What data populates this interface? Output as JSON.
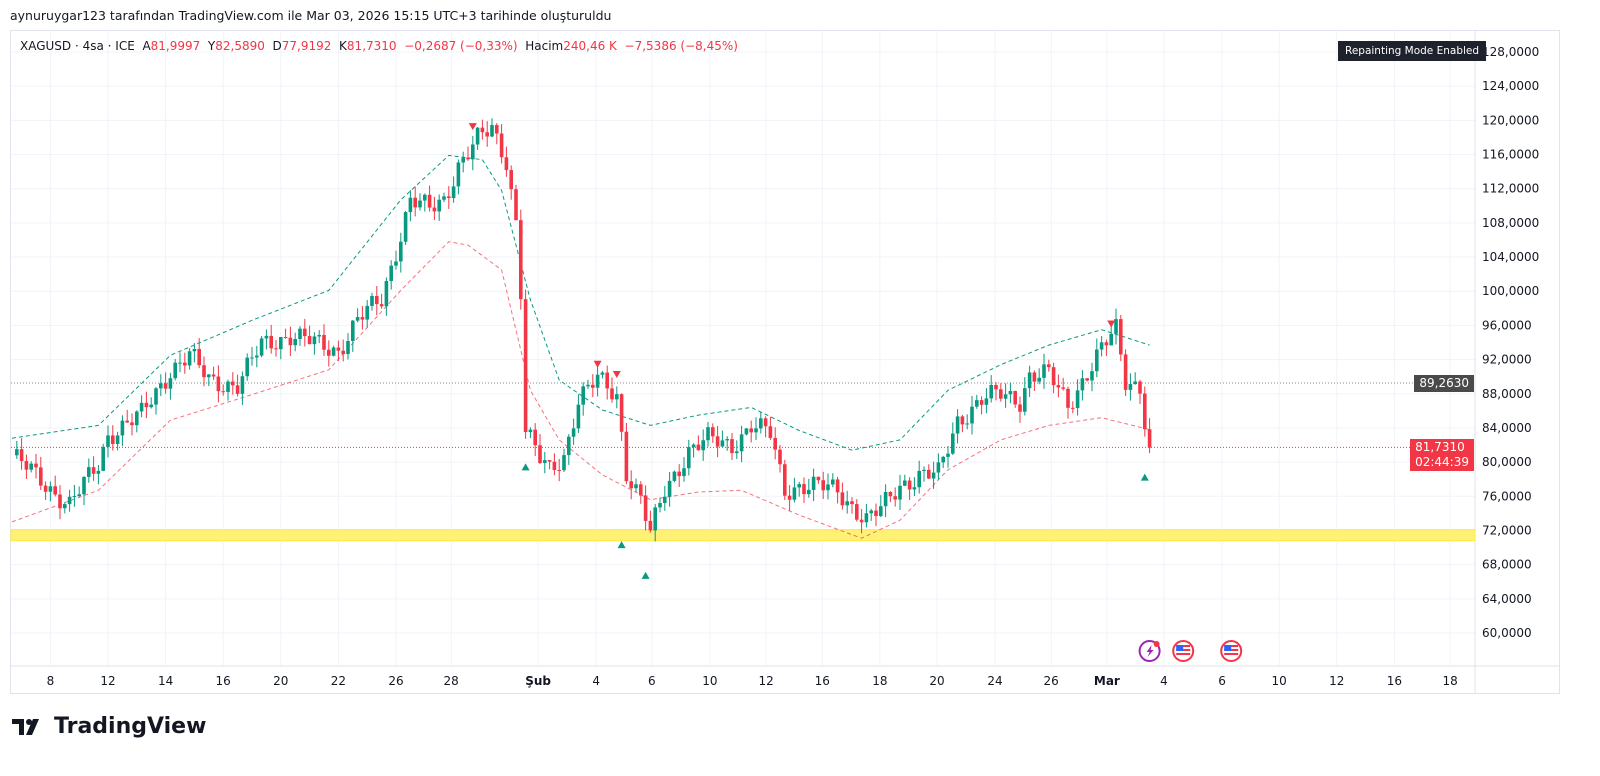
{
  "caption": "aynuruygar123 tarafından TradingView.com ile Mar 03, 2026 15:15 UTC+3 tarihinde oluşturuldu",
  "legend": {
    "symbol": "XAGUSD · 4sa · ICE",
    "open_label": "A",
    "open": "81,9997",
    "high_label": "Y",
    "high": "82,5890",
    "low_label": "D",
    "low": "77,9192",
    "close_label": "K",
    "close": "81,7310",
    "change": "−0,2687 (−0,33%)",
    "volume_label": "Hacim",
    "volume": "240,46 K",
    "volume_change": "−7,5386 (−8,45%)"
  },
  "badge": "Repainting Mode Enabled",
  "brand": "TradingView",
  "price_labels": {
    "line": {
      "value": 89.263,
      "text": "89,2630",
      "color": "#4a4a4a"
    },
    "last": {
      "value": 81.731,
      "text": "81,7310",
      "countdown": "02:44:39",
      "color": "#f23645"
    }
  },
  "colors": {
    "up": "#089981",
    "down": "#f23645",
    "zone": "#fff176",
    "zone_edge": "#ffeb3b"
  },
  "event_icons": [
    {
      "name": "earnings-lightning-icon",
      "bar": 237
    },
    {
      "name": "us-flag-event-icon",
      "bar": 244
    },
    {
      "name": "us-flag-event-icon",
      "bar": 254
    }
  ],
  "chart_data": {
    "type": "candlestick",
    "symbol": "XAGUSD",
    "interval": "4h",
    "ylim": [
      56,
      130
    ],
    "xlim_bars": [
      0,
      305
    ],
    "y_ticks": [
      60,
      64,
      68,
      72,
      76,
      80,
      84,
      88,
      92,
      96,
      100,
      104,
      108,
      112,
      116,
      120,
      124,
      128
    ],
    "y_tick_labels": [
      "60,0000",
      "64,0000",
      "68,0000",
      "72,0000",
      "76,0000",
      "80,0000",
      "84,0000",
      "88,0000",
      "92,0000",
      "96,0000",
      "100,0000",
      "104,0000",
      "108,0000",
      "112,0000",
      "116,0000",
      "120,0000",
      "124,0000",
      "128,0000"
    ],
    "x_ticks": [
      {
        "bar": 8,
        "label": "8"
      },
      {
        "bar": 20,
        "label": "12"
      },
      {
        "bar": 32,
        "label": "14"
      },
      {
        "bar": 44,
        "label": "16"
      },
      {
        "bar": 56,
        "label": "20"
      },
      {
        "bar": 68,
        "label": "22"
      },
      {
        "bar": 80,
        "label": "26"
      },
      {
        "bar": 91.5,
        "label": "28"
      },
      {
        "bar": 109.6,
        "label": "Şub",
        "bold": true
      },
      {
        "bar": 121.7,
        "label": "4"
      },
      {
        "bar": 133.3,
        "label": "6"
      },
      {
        "bar": 145.4,
        "label": "10"
      },
      {
        "bar": 157.1,
        "label": "12"
      },
      {
        "bar": 168.8,
        "label": "16"
      },
      {
        "bar": 180.8,
        "label": "18"
      },
      {
        "bar": 192.7,
        "label": "20"
      },
      {
        "bar": 204.8,
        "label": "24"
      },
      {
        "bar": 216.5,
        "label": "26"
      },
      {
        "bar": 228.1,
        "label": "Mar",
        "bold": true
      },
      {
        "bar": 240,
        "label": "4"
      },
      {
        "bar": 252.1,
        "label": "6"
      },
      {
        "bar": 264,
        "label": "10"
      },
      {
        "bar": 276,
        "label": "12"
      },
      {
        "bar": 288,
        "label": "16"
      },
      {
        "bar": 299.6,
        "label": "18"
      }
    ],
    "close_path": [
      [
        0,
        80.8
      ],
      [
        6,
        77.9
      ],
      [
        12,
        75
      ],
      [
        18,
        79.7
      ],
      [
        20,
        83.2
      ],
      [
        27,
        85.5
      ],
      [
        33,
        90.8
      ],
      [
        37,
        92.5
      ],
      [
        41,
        89.6
      ],
      [
        47,
        89
      ],
      [
        52,
        93.7
      ],
      [
        58,
        94.9
      ],
      [
        64,
        93.7
      ],
      [
        68,
        93.1
      ],
      [
        72,
        96.6
      ],
      [
        77,
        99
      ],
      [
        80,
        104.8
      ],
      [
        83,
        110.7
      ],
      [
        87,
        109.5
      ],
      [
        90,
        110.7
      ],
      [
        93,
        114.8
      ],
      [
        97,
        117.7
      ],
      [
        100,
        118.9
      ],
      [
        103,
        115.4
      ],
      [
        105,
        108.3
      ],
      [
        106,
        100.1
      ],
      [
        107,
        83.7
      ],
      [
        110,
        80.2
      ],
      [
        112,
        79
      ],
      [
        115,
        80.8
      ],
      [
        118,
        87.3
      ],
      [
        122,
        89.6
      ],
      [
        126,
        87.9
      ],
      [
        128,
        79
      ],
      [
        131,
        75.6
      ],
      [
        133,
        71.5
      ],
      [
        136,
        76.7
      ],
      [
        141,
        81.4
      ],
      [
        145,
        82.6
      ],
      [
        150,
        82
      ],
      [
        154,
        84.3
      ],
      [
        158,
        83.2
      ],
      [
        161,
        76.7
      ],
      [
        164,
        77.3
      ],
      [
        168,
        77.1
      ],
      [
        172,
        76.7
      ],
      [
        178,
        73.2
      ],
      [
        181,
        74.4
      ],
      [
        185,
        77.3
      ],
      [
        189,
        78.5
      ],
      [
        193,
        78.5
      ],
      [
        197,
        84.9
      ],
      [
        202,
        87.3
      ],
      [
        206,
        87.9
      ],
      [
        210,
        87.3
      ],
      [
        212,
        90.2
      ],
      [
        216,
        90.2
      ],
      [
        220,
        86.7
      ],
      [
        223,
        89.6
      ],
      [
        227,
        93.1
      ],
      [
        230,
        95.5
      ],
      [
        232,
        89.6
      ],
      [
        235,
        89
      ],
      [
        236,
        84.9
      ],
      [
        237,
        81.7
      ]
    ],
    "upper_band": [
      [
        0,
        82.8
      ],
      [
        18,
        84.3
      ],
      [
        33,
        92.5
      ],
      [
        50,
        96.6
      ],
      [
        66,
        100.1
      ],
      [
        81,
        110.7
      ],
      [
        91,
        115.9
      ],
      [
        98,
        115.4
      ],
      [
        102,
        111.8
      ],
      [
        108,
        99
      ],
      [
        114,
        89.6
      ],
      [
        123,
        86.1
      ],
      [
        133,
        84.3
      ],
      [
        143,
        85.5
      ],
      [
        154,
        86.4
      ],
      [
        164,
        83.7
      ],
      [
        175,
        81.4
      ],
      [
        185,
        82.6
      ],
      [
        195,
        88.4
      ],
      [
        206,
        91.4
      ],
      [
        216,
        93.7
      ],
      [
        227,
        95.5
      ],
      [
        237,
        93.7
      ]
    ],
    "lower_band": [
      [
        0,
        73
      ],
      [
        18,
        76.7
      ],
      [
        33,
        84.9
      ],
      [
        50,
        87.9
      ],
      [
        66,
        90.8
      ],
      [
        81,
        100.1
      ],
      [
        91,
        105.8
      ],
      [
        95,
        105.4
      ],
      [
        102,
        102.5
      ],
      [
        108,
        88.4
      ],
      [
        114,
        82.6
      ],
      [
        123,
        78.5
      ],
      [
        133,
        75.6
      ],
      [
        143,
        76.5
      ],
      [
        152,
        76.7
      ],
      [
        164,
        73.8
      ],
      [
        177,
        71.1
      ],
      [
        185,
        73.2
      ],
      [
        195,
        79.1
      ],
      [
        206,
        82.6
      ],
      [
        216,
        84.3
      ],
      [
        227,
        85.2
      ],
      [
        237,
        83.8
      ]
    ],
    "sell_signals": [
      [
        96,
        119.2
      ],
      [
        122,
        91.4
      ],
      [
        126,
        90.2
      ],
      [
        229,
        96.1
      ]
    ],
    "buy_signals": [
      [
        107,
        79.5
      ],
      [
        127,
        70.4
      ],
      [
        132,
        66.8
      ],
      [
        236,
        78.3
      ]
    ],
    "support_zone": [
      70.8,
      72.1
    ]
  }
}
